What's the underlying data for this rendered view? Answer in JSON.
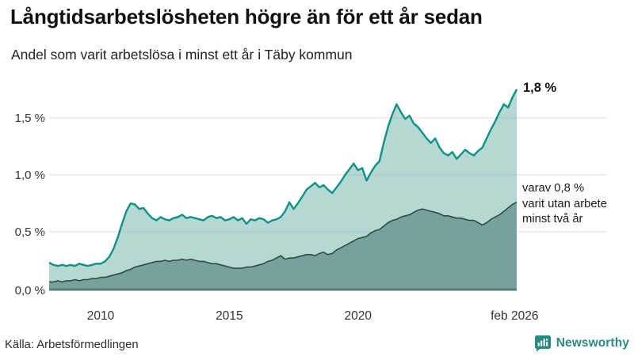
{
  "header": {
    "title": "Långtidsarbetslösheten högre än för ett år sedan",
    "subtitle": "Andel som varit arbetslösa i minst ett år i Täby kommun"
  },
  "annotations": {
    "series1_end_label": "1,8 %",
    "series2_label_lines": [
      "varav 0,8 %",
      "varit utan arbete",
      "minst två år"
    ]
  },
  "footer": {
    "source": "Källa: Arbetsförmedlingen",
    "brand": "Newsworthy"
  },
  "colors": {
    "line_1yr": "#0f9285",
    "fill_1yr": "#5aa99b",
    "line_2yr": "#2e4b46",
    "fill_2yr": "#76a29b",
    "gridline": "#e7e9eb",
    "baseline": "#567f79",
    "brand_teal": "#2a8a80",
    "text_dark": "#111111"
  },
  "chart_data": {
    "type": "area",
    "title": "Långtidsarbetslösheten högre än för ett år sedan",
    "subtitle": "Andel som varit arbetslösa i minst ett år i Täby kommun",
    "xlabel": "",
    "ylabel": "",
    "unit": "%",
    "grid": "horizontal",
    "legend_position": "right-annotations",
    "x": {
      "unit": "decimal_year",
      "start": 2008.0,
      "step_years": 0.1667,
      "end": 2026.1667
    },
    "xlim": [
      2008.0,
      2026.1667
    ],
    "ylim": [
      0,
      1.8
    ],
    "x_ticks": [
      {
        "label": "2010",
        "year": 2010
      },
      {
        "label": "2015",
        "year": 2015
      },
      {
        "label": "2020",
        "year": 2020
      },
      {
        "label": "feb 2026",
        "year": 2026.083
      }
    ],
    "y_ticks": [
      {
        "label": "0,0 %",
        "value": 0.0
      },
      {
        "label": "0,5 %",
        "value": 0.5
      },
      {
        "label": "1,0 %",
        "value": 1.0
      },
      {
        "label": "1,5 %",
        "value": 1.5
      }
    ],
    "series": [
      {
        "name": "Andel som varit arbetslösa i minst ett år",
        "end_value_label": "1,8 %",
        "last_value": 1.75,
        "values": [
          0.23,
          0.21,
          0.2,
          0.21,
          0.2,
          0.21,
          0.2,
          0.22,
          0.21,
          0.2,
          0.21,
          0.22,
          0.22,
          0.24,
          0.28,
          0.35,
          0.45,
          0.57,
          0.68,
          0.75,
          0.74,
          0.7,
          0.71,
          0.66,
          0.62,
          0.6,
          0.63,
          0.61,
          0.6,
          0.62,
          0.63,
          0.65,
          0.62,
          0.63,
          0.62,
          0.61,
          0.6,
          0.63,
          0.64,
          0.62,
          0.63,
          0.6,
          0.61,
          0.63,
          0.6,
          0.62,
          0.57,
          0.61,
          0.6,
          0.62,
          0.61,
          0.58,
          0.6,
          0.61,
          0.63,
          0.68,
          0.76,
          0.7,
          0.75,
          0.81,
          0.87,
          0.9,
          0.93,
          0.89,
          0.91,
          0.87,
          0.84,
          0.89,
          0.94,
          1.0,
          1.05,
          1.1,
          1.04,
          1.06,
          0.95,
          1.02,
          1.08,
          1.12,
          1.28,
          1.42,
          1.53,
          1.62,
          1.55,
          1.49,
          1.52,
          1.45,
          1.42,
          1.37,
          1.32,
          1.28,
          1.32,
          1.24,
          1.19,
          1.17,
          1.2,
          1.14,
          1.18,
          1.22,
          1.19,
          1.17,
          1.21,
          1.24,
          1.32,
          1.4,
          1.47,
          1.55,
          1.62,
          1.59,
          1.68,
          1.75
        ]
      },
      {
        "name": "varav utan arbete minst två år",
        "end_value_label": "varav 0,8 % varit utan arbete minst två år",
        "last_value": 0.76,
        "values": [
          0.06,
          0.06,
          0.07,
          0.06,
          0.07,
          0.07,
          0.08,
          0.07,
          0.08,
          0.08,
          0.09,
          0.09,
          0.1,
          0.1,
          0.11,
          0.12,
          0.13,
          0.14,
          0.16,
          0.17,
          0.19,
          0.2,
          0.21,
          0.22,
          0.23,
          0.24,
          0.24,
          0.25,
          0.24,
          0.25,
          0.25,
          0.26,
          0.25,
          0.26,
          0.25,
          0.24,
          0.24,
          0.23,
          0.22,
          0.22,
          0.21,
          0.2,
          0.19,
          0.18,
          0.18,
          0.18,
          0.19,
          0.19,
          0.2,
          0.21,
          0.22,
          0.24,
          0.25,
          0.27,
          0.29,
          0.26,
          0.27,
          0.27,
          0.28,
          0.29,
          0.3,
          0.3,
          0.29,
          0.31,
          0.32,
          0.3,
          0.31,
          0.34,
          0.36,
          0.38,
          0.4,
          0.42,
          0.44,
          0.45,
          0.46,
          0.49,
          0.51,
          0.52,
          0.55,
          0.58,
          0.6,
          0.61,
          0.63,
          0.64,
          0.65,
          0.67,
          0.69,
          0.7,
          0.69,
          0.68,
          0.67,
          0.66,
          0.64,
          0.64,
          0.63,
          0.62,
          0.62,
          0.61,
          0.6,
          0.6,
          0.58,
          0.56,
          0.58,
          0.61,
          0.63,
          0.65,
          0.68,
          0.71,
          0.74,
          0.76
        ]
      }
    ]
  }
}
